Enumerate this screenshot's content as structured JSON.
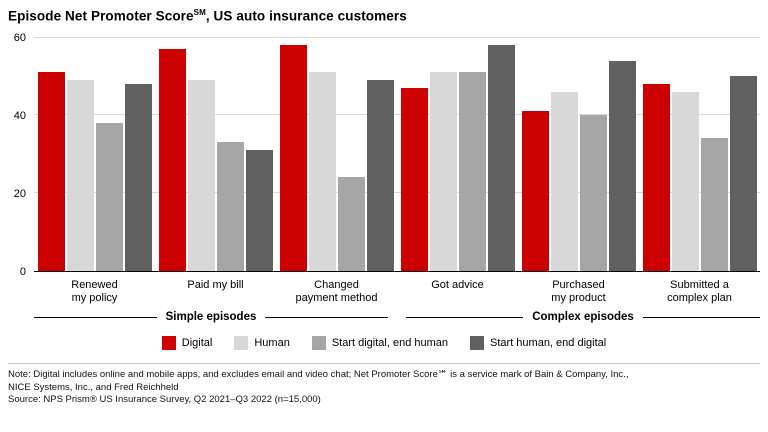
{
  "title": {
    "pre": "Episode Net Promoter Score",
    "sup": "SM",
    "post": ", US auto insurance customers"
  },
  "chart_data": {
    "type": "bar",
    "categories": [
      "Renewed\nmy policy",
      "Paid my bill",
      "Changed\npayment method",
      "Got advice",
      "Purchased\nmy product",
      "Submitted a\ncomplex plan"
    ],
    "series": [
      {
        "name": "Digital",
        "color": "#cc0000",
        "values": [
          51,
          57,
          58,
          47,
          41,
          48
        ]
      },
      {
        "name": "Human",
        "color": "#d8d8d8",
        "values": [
          49,
          49,
          51,
          51,
          46,
          46
        ]
      },
      {
        "name": "Start digital, end human",
        "color": "#a6a6a6",
        "values": [
          38,
          33,
          24,
          51,
          40,
          34
        ]
      },
      {
        "name": "Start human, end digital",
        "color": "#606060",
        "values": [
          48,
          31,
          49,
          58,
          54,
          50
        ]
      }
    ],
    "ylim": [
      0,
      60
    ],
    "yticks": [
      0,
      20,
      40,
      60
    ],
    "grid": "horizontal",
    "legend_position": "bottom",
    "category_groups": [
      {
        "label": "Simple episodes",
        "span": 3
      },
      {
        "label": "Complex episodes",
        "span": 3
      }
    ]
  },
  "notes": {
    "line1": "Note: Digital includes online and mobile apps, and excludes email and video chat; Net Promoter Score℠ is a service mark of Bain & Company, Inc.,",
    "line2": "NICE Systems, Inc., and Fred Reichheld",
    "line3": "Source: NPS Prism® US Insurance Survey, Q2 2021–Q3 2022 (n=15,000)"
  }
}
